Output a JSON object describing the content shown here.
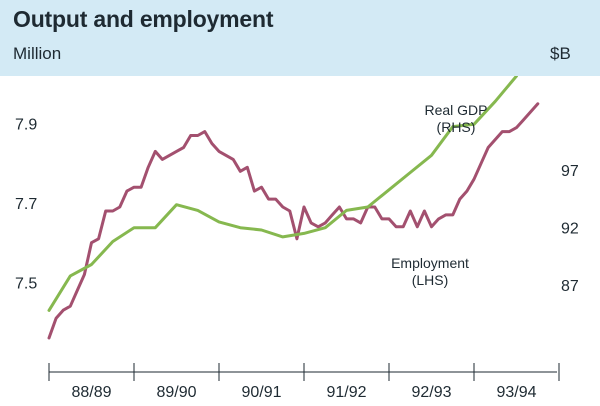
{
  "chart_data": {
    "type": "line",
    "title": "Output and employment",
    "left_axis_unit": "Million",
    "right_axis_unit": "$B",
    "categories": [
      "88/89",
      "89/90",
      "90/91",
      "91/92",
      "92/93",
      "93/94"
    ],
    "left_axis": {
      "ticks": [
        "7.9",
        "7.7",
        "7.5"
      ],
      "tick_values": [
        7.9,
        7.7,
        7.5
      ],
      "ylim": [
        7.36,
        8.02
      ]
    },
    "right_axis": {
      "ticks": [
        "97",
        "92",
        "87"
      ],
      "tick_values": [
        97,
        92,
        87
      ],
      "ylim": [
        82.4,
        105.2
      ]
    },
    "series": [
      {
        "name": "Employment (LHS)",
        "label_lines": [
          "Employment",
          "(LHS)"
        ],
        "axis": "left",
        "color": "#a3506f",
        "x": [
          0,
          0.083,
          0.167,
          0.25,
          0.333,
          0.417,
          0.5,
          0.583,
          0.667,
          0.75,
          0.833,
          0.917,
          1,
          1.083,
          1.167,
          1.25,
          1.333,
          1.417,
          1.5,
          1.583,
          1.667,
          1.75,
          1.833,
          1.917,
          2,
          2.083,
          2.167,
          2.25,
          2.333,
          2.417,
          2.5,
          2.583,
          2.667,
          2.75,
          2.833,
          2.917,
          3,
          3.083,
          3.167,
          3.25,
          3.333,
          3.417,
          3.5,
          3.583,
          3.667,
          3.75,
          3.833,
          3.917,
          4,
          4.083,
          4.167,
          4.25,
          4.333,
          4.417,
          4.5,
          4.583,
          4.667,
          4.75,
          4.833,
          4.917,
          5,
          5.083,
          5.167,
          5.25,
          5.333,
          5.417,
          5.5,
          5.583,
          5.667,
          5.75
        ],
        "values": [
          7.36,
          7.41,
          7.43,
          7.44,
          7.48,
          7.52,
          7.6,
          7.61,
          7.68,
          7.68,
          7.69,
          7.73,
          7.74,
          7.74,
          7.79,
          7.83,
          7.81,
          7.82,
          7.83,
          7.84,
          7.87,
          7.87,
          7.88,
          7.85,
          7.83,
          7.82,
          7.81,
          7.78,
          7.79,
          7.73,
          7.74,
          7.71,
          7.71,
          7.69,
          7.68,
          7.61,
          7.69,
          7.65,
          7.64,
          7.65,
          7.67,
          7.69,
          7.66,
          7.66,
          7.65,
          7.69,
          7.69,
          7.66,
          7.66,
          7.64,
          7.64,
          7.68,
          7.64,
          7.68,
          7.64,
          7.66,
          7.67,
          7.67,
          7.71,
          7.73,
          7.76,
          7.8,
          7.84,
          7.86,
          7.88,
          7.88,
          7.89,
          7.91,
          7.93,
          7.95
        ]
      },
      {
        "name": "Real GDP (RHS)",
        "label_lines": [
          "Real GDP",
          "(RHS)"
        ],
        "axis": "right",
        "color": "#86b84f",
        "x": [
          0,
          0.25,
          0.5,
          0.75,
          1,
          1.25,
          1.5,
          1.75,
          2,
          2.25,
          2.5,
          2.75,
          3,
          3.25,
          3.5,
          3.75,
          4,
          4.25,
          4.5,
          4.75,
          5,
          5.25,
          5.5
        ],
        "values": [
          84.8,
          87.8,
          88.8,
          90.8,
          92.0,
          92.0,
          94.0,
          93.5,
          92.5,
          92.0,
          91.8,
          91.2,
          91.5,
          92.0,
          93.5,
          93.8,
          95.3,
          96.8,
          98.3,
          100.8,
          101.0,
          103.0,
          105.2
        ]
      }
    ]
  }
}
